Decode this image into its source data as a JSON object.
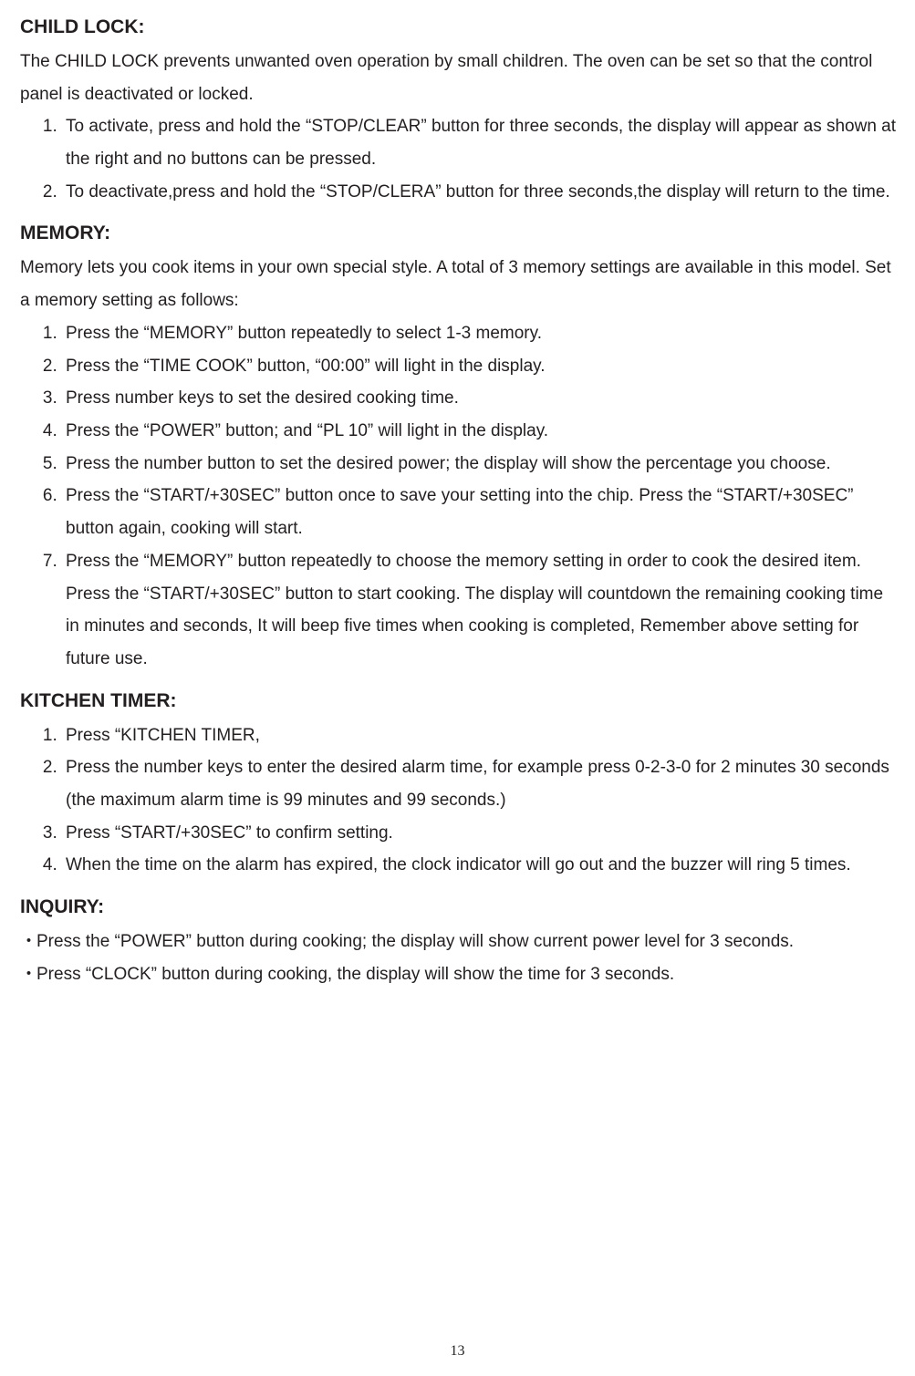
{
  "childLock": {
    "title": "CHILD LOCK:",
    "intro": "The CHILD LOCK prevents unwanted oven operation by small children. The oven can be set so that the control panel is deactivated or locked.",
    "steps": [
      "To activate, press and hold the “STOP/CLEAR” button for three seconds, the display will appear as shown at the right and no buttons can be pressed.",
      "To deactivate,press and hold the “STOP/CLERA” button for three seconds,the display will return to the time."
    ]
  },
  "memory": {
    "title": "MEMORY:",
    "intro": "Memory lets you cook items in your own special style. A total of 3 memory settings are available in this model. Set a memory setting as follows:",
    "steps": [
      "Press the “MEMORY” button repeatedly to select 1-3 memory.",
      "Press the “TIME COOK” button, “00:00” will light in the display.",
      "Press number keys to set the desired cooking time.",
      "Press the “POWER” button; and “PL 10” will light in the display.",
      "Press the number button to set the desired power; the display will show the percentage you choose.",
      "Press the “START/+30SEC” button once to save your setting into the chip. Press the “START/+30SEC” button again, cooking will start.",
      "Press the “MEMORY” button repeatedly to choose the memory setting in order to cook the desired item. Press the “START/+30SEC” button to start cooking. The display will countdown the remaining cooking time in minutes and seconds, It will beep five times when cooking is completed, Remember above setting for future use."
    ]
  },
  "kitchenTimer": {
    "title": "KITCHEN TIMER:",
    "steps": [
      "Press “KITCHEN TIMER,",
      "Press the number keys to enter the desired alarm time, for example press 0-2-3-0 for 2 minutes 30 seconds (the maximum alarm time is 99 minutes and 99 seconds.)",
      "Press “START/+30SEC” to confirm setting.",
      "When the time on the alarm has expired, the clock indicator will go out and the buzzer will ring 5 times."
    ]
  },
  "inquiry": {
    "title": "INQUIRY:",
    "bullets": [
      "Press the “POWER” button during cooking; the display will show current power level for 3 seconds.",
      "Press “CLOCK” button during cooking, the display will show the time for 3 seconds."
    ]
  },
  "pageNumber": "13",
  "colors": {
    "text": "#231f20",
    "background": "#ffffff"
  },
  "typography": {
    "titleFontSize": 21,
    "bodyFontSize": 19,
    "lineHeight": 1.88,
    "pageNumFontSize": 16
  }
}
